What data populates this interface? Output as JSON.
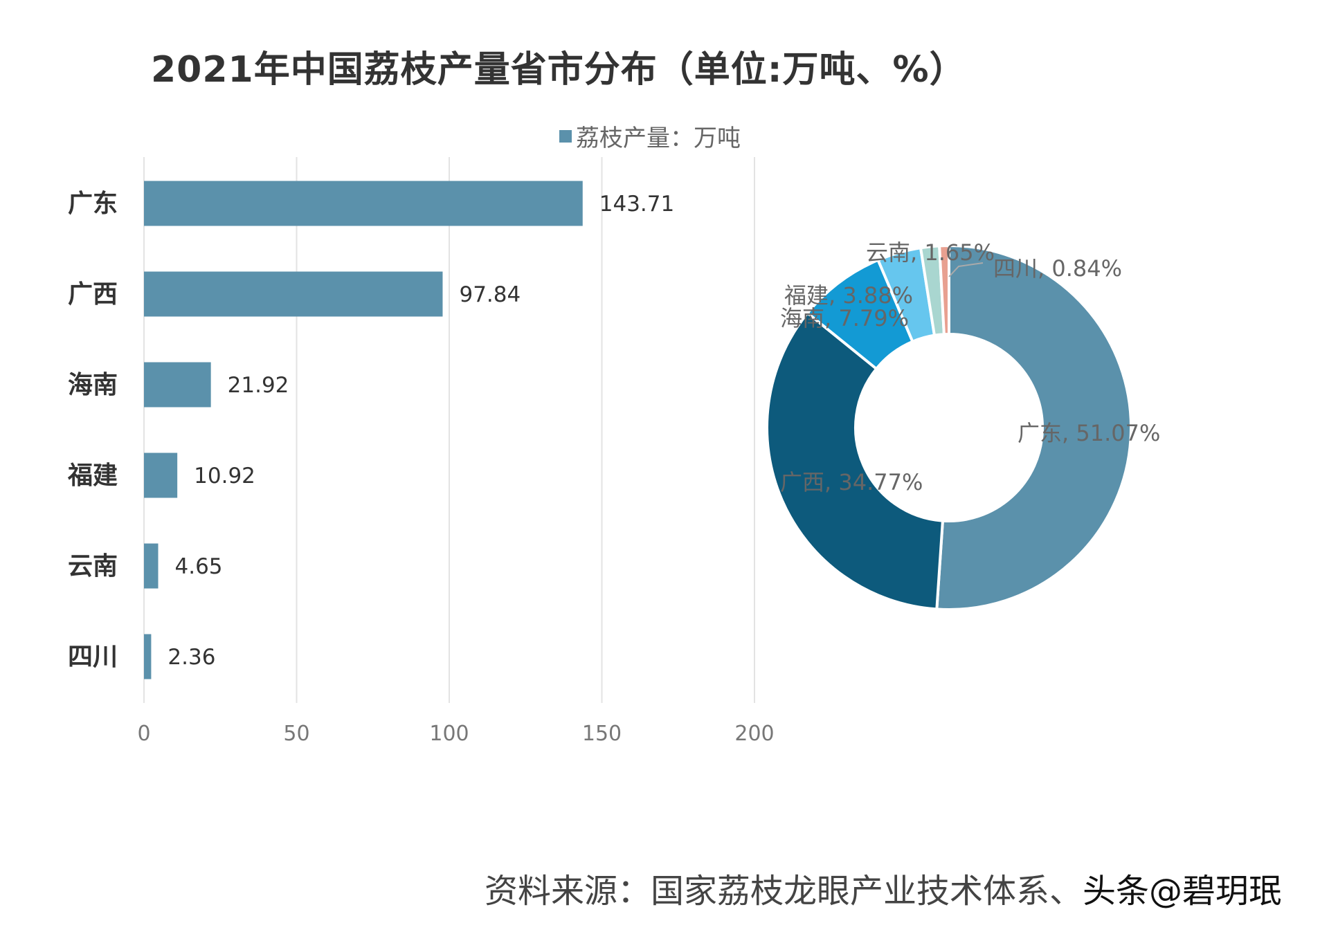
{
  "title": "2021年中国荔枝产量省市分布（单位:万吨、%）",
  "source": "资料来源：国家荔枝龙眼产业技术体系、",
  "watermark": "头条@碧玥珉",
  "chart_data": [
    {
      "type": "bar",
      "orientation": "horizontal",
      "categories": [
        "广东",
        "广西",
        "海南",
        "福建",
        "云南",
        "四川"
      ],
      "series": [
        {
          "name": "荔枝产量：万吨",
          "values": [
            143.71,
            97.84,
            21.92,
            10.92,
            4.65,
            2.36
          ],
          "color": "#5b91ab"
        }
      ],
      "data_labels": [
        "143.71",
        "97.84",
        "21.92",
        "10.92",
        "4.65",
        "2.36"
      ],
      "xlim": [
        0,
        200
      ],
      "xticks": [
        "0",
        "50",
        "100",
        "150",
        "200"
      ],
      "grid": true,
      "legend": "top"
    },
    {
      "type": "pie",
      "donut": true,
      "labels": [
        "广东",
        "广西",
        "海南",
        "福建",
        "云南",
        "四川"
      ],
      "values": [
        51.07,
        34.77,
        7.79,
        3.88,
        1.65,
        0.84
      ],
      "data_labels": [
        "广东, 51.07%",
        "广西, 34.77%",
        "海南, 7.79%",
        "福建, 3.88%",
        "云南, 1.65%",
        "四川, 0.84%"
      ],
      "colors": [
        "#5b91ab",
        "#0d5a7c",
        "#139ad4",
        "#66c6ee",
        "#a9d6d0",
        "#e8a090"
      ]
    }
  ]
}
